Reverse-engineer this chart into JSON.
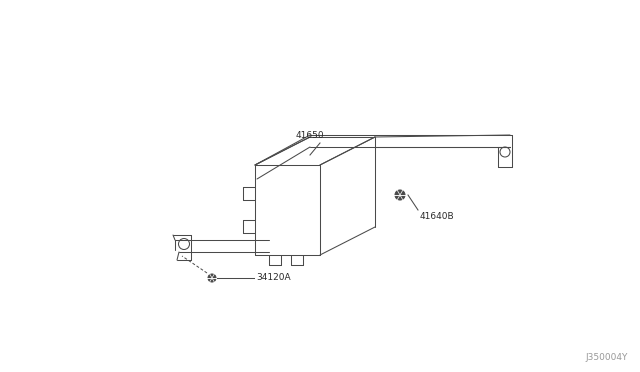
{
  "bg_color": "#ffffff",
  "line_color": "#4a4a4a",
  "text_color": "#2a2a2a",
  "fig_width": 6.4,
  "fig_height": 3.72,
  "dpi": 100,
  "watermark": "J350004Y",
  "watermark_color": "#999999",
  "lw": 0.75,
  "label_fontsize": 6.5,
  "watermark_fontsize": 6.5
}
